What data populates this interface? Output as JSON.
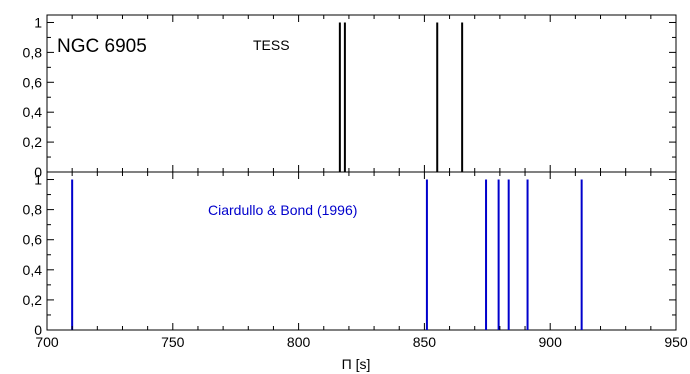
{
  "chart_data": [
    {
      "type": "bar",
      "panel": "top",
      "annotations": [
        "NGC 6905",
        "TESS"
      ],
      "xlim": [
        700,
        950
      ],
      "ylim": [
        0,
        1.05
      ],
      "yticks": [
        "0",
        "0,2",
        "0,4",
        "0,6",
        "0,8",
        "1"
      ],
      "color": "#000000",
      "x": [
        816.4,
        818.4,
        855.1,
        865.0
      ],
      "values": [
        1,
        1,
        1,
        1
      ]
    },
    {
      "type": "bar",
      "panel": "bottom",
      "annotations": [
        "Ciardullo & Bond  (1996)"
      ],
      "xlim": [
        700,
        950
      ],
      "ylim": [
        0,
        1.05
      ],
      "yticks": [
        "0",
        "0,2",
        "0,4",
        "0,6",
        "0,8",
        "1"
      ],
      "xticks": [
        "700",
        "750",
        "800",
        "850",
        "900",
        "950"
      ],
      "xlabel": "Π [s]",
      "color": "#0000cc",
      "x": [
        710.0,
        851.0,
        874.5,
        879.5,
        883.5,
        891.0,
        912.5
      ],
      "values": [
        1,
        1,
        1,
        1,
        1,
        1,
        1
      ]
    }
  ]
}
